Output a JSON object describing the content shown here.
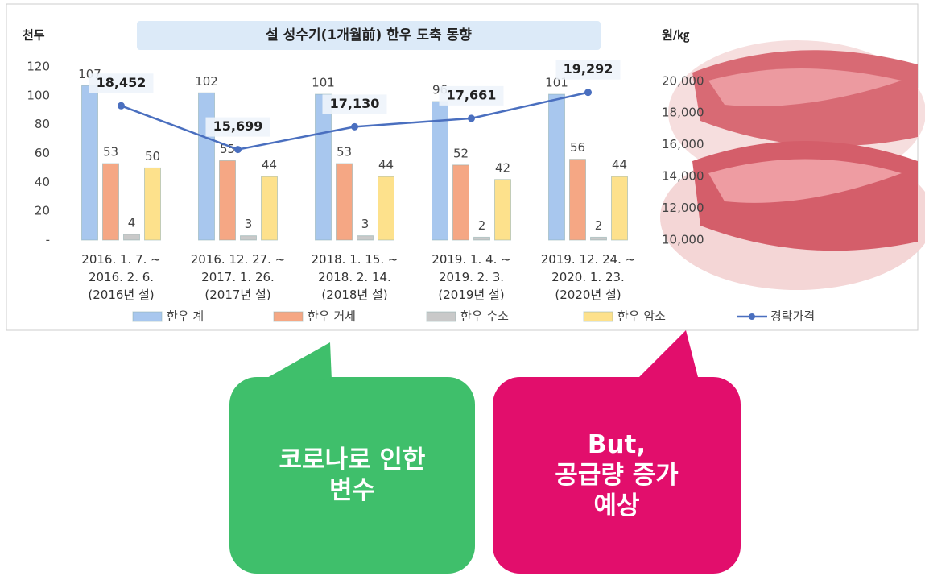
{
  "chart_data": {
    "type": "bar",
    "title": "설 성수기(1개월前) 한우 도축 동향",
    "ylabel": "천두",
    "y2label": "원/㎏",
    "categories": [
      "2016. 1. 7. ~\n2016. 2. 6.\n(2016년 설)",
      "2016. 12. 27. ~\n2017. 1. 26.\n(2017년 설)",
      "2018. 1. 15. ~\n2018. 2. 14.\n(2018년 설)",
      "2019. 1. 4. ~\n2019. 2. 3.\n(2019년 설)",
      "2019. 12. 24. ~\n2020. 1. 23.\n(2020년 설)"
    ],
    "series": [
      {
        "name": "한우 계",
        "color": "#a8c7ee",
        "values": [
          107,
          102,
          101,
          96,
          101
        ]
      },
      {
        "name": "한우 거세",
        "color": "#f5a784",
        "values": [
          53,
          55,
          53,
          52,
          56
        ]
      },
      {
        "name": "한우 수소",
        "color": "#c9c9c9",
        "values": [
          4,
          3,
          3,
          2,
          2
        ]
      },
      {
        "name": "한우 암소",
        "color": "#fde18c",
        "values": [
          50,
          44,
          44,
          42,
          44
        ]
      },
      {
        "name": "경락가격",
        "color": "#4a6fbf",
        "type": "line",
        "axis": "y2",
        "values": [
          18452,
          15699,
          17130,
          17661,
          19292
        ],
        "value_labels": [
          "18,452",
          "15,699",
          "17,130",
          "17,661",
          "19,292"
        ]
      }
    ],
    "ylim": [
      0,
      120
    ],
    "yticks": [
      {
        "value": 0,
        "label": "-"
      },
      20,
      40,
      60,
      80,
      100,
      120
    ],
    "y2lim": [
      10000,
      20900
    ],
    "y2ticks": [
      {
        "value": 10000,
        "label": "10,000"
      },
      {
        "value": 12000,
        "label": "12,000"
      },
      {
        "value": 14000,
        "label": "14,000"
      },
      {
        "value": 16000,
        "label": "16,000"
      },
      {
        "value": 18000,
        "label": "18,000"
      },
      {
        "value": 20000,
        "label": "20,000"
      }
    ],
    "grid": false
  },
  "callouts": [
    {
      "text": "코로나로 인한\n변수"
    },
    {
      "text": "But,\n공급량 증가\n예상"
    }
  ]
}
